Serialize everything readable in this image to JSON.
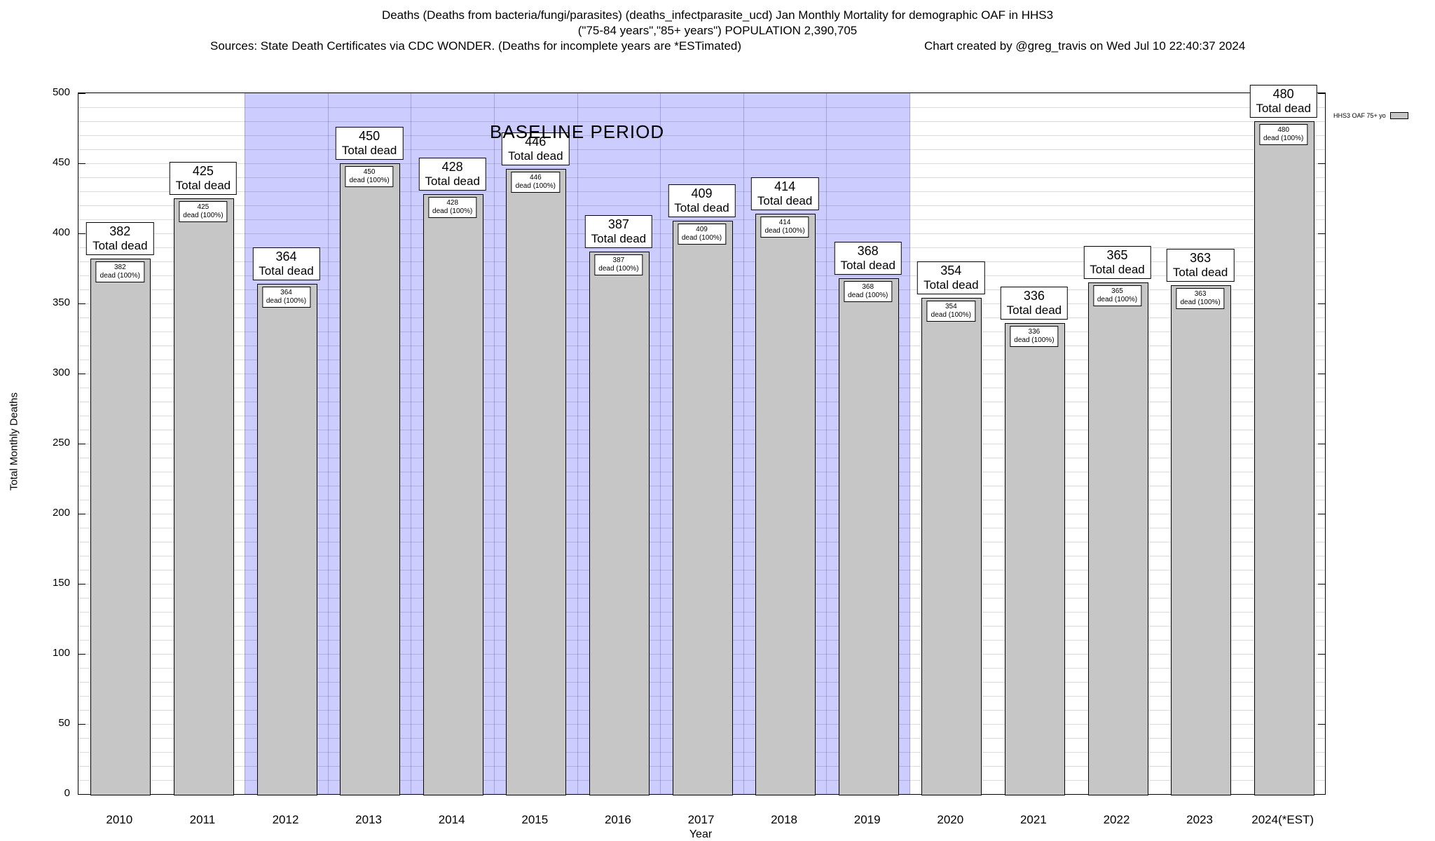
{
  "header": {
    "title_line1": "Deaths (Deaths from bacteria/fungi/parasites) (deaths_infectparasite_ucd) Jan Monthly Mortality for demographic OAF in HHS3",
    "title_line2": "(\"75-84 years\",\"85+ years\") POPULATION 2,390,705",
    "sources": "Sources: State Death Certificates via CDC WONDER. (Deaths for incomplete years are *ESTimated)",
    "credit": "Chart created by @greg_travis on Wed Jul 10 22:40:37 2024"
  },
  "chart_data": {
    "type": "bar",
    "title": "Deaths (Deaths from bacteria/fungi/parasites) (deaths_infectparasite_ucd) Jan Monthly Mortality for demographic OAF in HHS3 (\"75-84 years\",\"85+ years\") POPULATION 2,390,705",
    "xlabel": "Year",
    "ylabel": "Total Monthly Deaths",
    "ylim": [
      0,
      500
    ],
    "ytick_step": 50,
    "minor_grid_step": 10,
    "grid": true,
    "legend_position": "top-right",
    "categories": [
      "2010",
      "2011",
      "2012",
      "2013",
      "2014",
      "2015",
      "2016",
      "2017",
      "2018",
      "2019",
      "2020",
      "2021",
      "2022",
      "2023",
      "2024(*EST)"
    ],
    "values": [
      382,
      425,
      364,
      450,
      428,
      446,
      387,
      409,
      414,
      368,
      354,
      336,
      365,
      363,
      480
    ],
    "bar_label_caption": "Total dead",
    "bar_inner_caption": "dead (100%)",
    "bar_color": "#c6c6c6",
    "baseline": {
      "label": "BASELINE PERIOD",
      "start_category": "2012",
      "end_category": "2019",
      "color": "#ccccff",
      "edge_color": "#a0a0e8"
    },
    "legend": {
      "label": "HHS3 OAF 75+ yo"
    }
  }
}
